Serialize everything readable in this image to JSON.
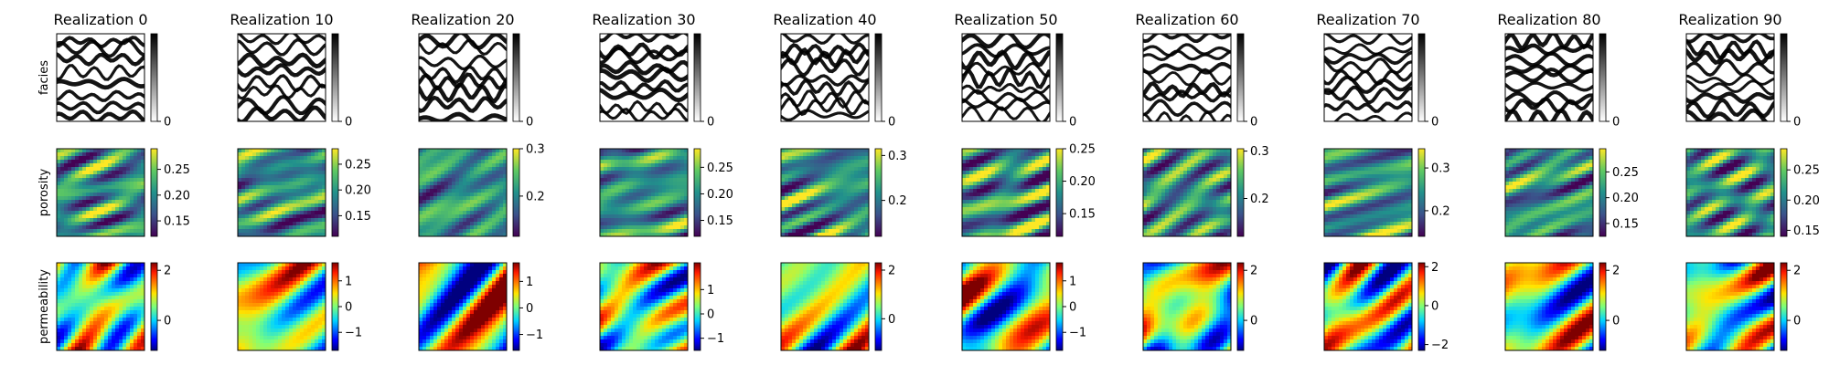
{
  "chart_data": {
    "type": "heatmap",
    "layout": "grid of 3 rows x 10 columns of image panels with colorbars",
    "column_titles": [
      "Realization 0",
      "Realization 10",
      "Realization 20",
      "Realization 30",
      "Realization 40",
      "Realization 50",
      "Realization 60",
      "Realization 70",
      "Realization 80",
      "Realization 90"
    ],
    "row_labels": [
      "facies",
      "porosity",
      "permeability"
    ],
    "rows": [
      {
        "name": "facies",
        "colormap": "gray_r",
        "panels": [
          {
            "realization": "Realization 0",
            "vmin": 0,
            "vmax": 1,
            "colorbar_ticks": [
              "0"
            ]
          },
          {
            "realization": "Realization 10",
            "vmin": 0,
            "vmax": 1,
            "colorbar_ticks": [
              "0"
            ]
          },
          {
            "realization": "Realization 20",
            "vmin": 0,
            "vmax": 1,
            "colorbar_ticks": [
              "0"
            ]
          },
          {
            "realization": "Realization 30",
            "vmin": 0,
            "vmax": 1,
            "colorbar_ticks": [
              "0"
            ]
          },
          {
            "realization": "Realization 40",
            "vmin": 0,
            "vmax": 1,
            "colorbar_ticks": [
              "0"
            ]
          },
          {
            "realization": "Realization 50",
            "vmin": 0,
            "vmax": 1,
            "colorbar_ticks": [
              "0"
            ]
          },
          {
            "realization": "Realization 60",
            "vmin": 0,
            "vmax": 1,
            "colorbar_ticks": [
              "0"
            ]
          },
          {
            "realization": "Realization 70",
            "vmin": 0,
            "vmax": 1,
            "colorbar_ticks": [
              "0"
            ]
          },
          {
            "realization": "Realization 80",
            "vmin": 0,
            "vmax": 1,
            "colorbar_ticks": [
              "0"
            ]
          },
          {
            "realization": "Realization 90",
            "vmin": 0,
            "vmax": 1,
            "colorbar_ticks": [
              "0"
            ]
          }
        ]
      },
      {
        "name": "porosity",
        "colormap": "viridis",
        "panels": [
          {
            "realization": "Realization 0",
            "vmin": 0.12,
            "vmax": 0.29,
            "colorbar_ticks": [
              "0.25",
              "0.20",
              "0.15"
            ]
          },
          {
            "realization": "Realization 10",
            "vmin": 0.11,
            "vmax": 0.28,
            "colorbar_ticks": [
              "0.25",
              "0.20",
              "0.15"
            ]
          },
          {
            "realization": "Realization 20",
            "vmin": 0.115,
            "vmax": 0.3,
            "colorbar_ticks": [
              "0.3",
              "0.2"
            ]
          },
          {
            "realization": "Realization 30",
            "vmin": 0.12,
            "vmax": 0.285,
            "colorbar_ticks": [
              "0.25",
              "0.20",
              "0.15"
            ]
          },
          {
            "realization": "Realization 40",
            "vmin": 0.12,
            "vmax": 0.315,
            "colorbar_ticks": [
              "0.3",
              "0.2"
            ]
          },
          {
            "realization": "Realization 50",
            "vmin": 0.115,
            "vmax": 0.25,
            "colorbar_ticks": [
              "0.25",
              "0.20",
              "0.15"
            ]
          },
          {
            "realization": "Realization 60",
            "vmin": 0.12,
            "vmax": 0.305,
            "colorbar_ticks": [
              "0.3",
              "0.2"
            ]
          },
          {
            "realization": "Realization 70",
            "vmin": 0.14,
            "vmax": 0.345,
            "colorbar_ticks": [
              "0.3",
              "0.2"
            ]
          },
          {
            "realization": "Realization 80",
            "vmin": 0.125,
            "vmax": 0.295,
            "colorbar_ticks": [
              "0.25",
              "0.20",
              "0.15"
            ]
          },
          {
            "realization": "Realization 90",
            "vmin": 0.14,
            "vmax": 0.285,
            "colorbar_ticks": [
              "0.25",
              "0.20",
              "0.15"
            ]
          }
        ]
      },
      {
        "name": "permeability",
        "colormap": "jet",
        "panels": [
          {
            "realization": "Realization 0",
            "vmin": -1.2,
            "vmax": 2.3,
            "colorbar_ticks": [
              "2",
              "0"
            ]
          },
          {
            "realization": "Realization 10",
            "vmin": -1.7,
            "vmax": 1.7,
            "colorbar_ticks": [
              "1",
              "0",
              "−1"
            ]
          },
          {
            "realization": "Realization 20",
            "vmin": -1.6,
            "vmax": 1.7,
            "colorbar_ticks": [
              "1",
              "0",
              "−1"
            ]
          },
          {
            "realization": "Realization 30",
            "vmin": -1.5,
            "vmax": 2.1,
            "colorbar_ticks": [
              "1",
              "0",
              "−1"
            ]
          },
          {
            "realization": "Realization 40",
            "vmin": -1.3,
            "vmax": 2.3,
            "colorbar_ticks": [
              "2",
              "0"
            ]
          },
          {
            "realization": "Realization 50",
            "vmin": -1.7,
            "vmax": 1.7,
            "colorbar_ticks": [
              "1",
              "0",
              "−1"
            ]
          },
          {
            "realization": "Realization 60",
            "vmin": -1.2,
            "vmax": 2.3,
            "colorbar_ticks": [
              "2",
              "0"
            ]
          },
          {
            "realization": "Realization 70",
            "vmin": -2.3,
            "vmax": 2.2,
            "colorbar_ticks": [
              "2",
              "0",
              "−2"
            ]
          },
          {
            "realization": "Realization 80",
            "vmin": -1.2,
            "vmax": 2.3,
            "colorbar_ticks": [
              "2",
              "0"
            ]
          },
          {
            "realization": "Realization 90",
            "vmin": -1.2,
            "vmax": 2.3,
            "colorbar_ticks": [
              "2",
              "0"
            ]
          }
        ]
      }
    ]
  }
}
